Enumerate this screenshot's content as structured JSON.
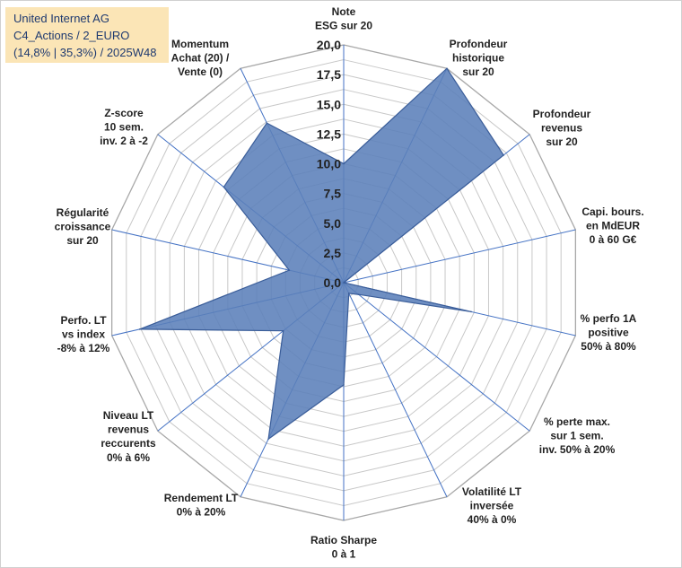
{
  "info": {
    "company": "United Internet AG",
    "portfolio": "C4_Actions / 2_EURO",
    "stats": "(14,8% | 35,3%) / 2025W48"
  },
  "chart_data": {
    "type": "radar",
    "title": "United Internet AG",
    "rmax": 20,
    "ticks": [
      "0,0",
      "2,5",
      "5,0",
      "7,5",
      "10,0",
      "12,5",
      "15,0",
      "17,5",
      "20,0"
    ],
    "axes": [
      [
        "Note",
        "ESG sur 20"
      ],
      [
        "Profondeur",
        "historique",
        "sur 20"
      ],
      [
        "Profondeur",
        "revenus",
        "sur 20"
      ],
      [
        "Capi. bours.",
        "en MdEUR",
        "0 à 60 G€"
      ],
      [
        "% perfo 1A",
        "positive",
        "50% à 80%"
      ],
      [
        "% perte max.",
        "sur 1 sem.",
        "inv. 50% à 20%"
      ],
      [
        "Volatilité LT",
        "inversée",
        "40% à 0%"
      ],
      [
        "Ratio Sharpe",
        "0 à 1"
      ],
      [
        "Rendement LT",
        "0% à 20%"
      ],
      [
        "Niveau LT",
        "revenus",
        "reccurents",
        "0% à 6%"
      ],
      [
        "Perfo. LT",
        "vs index",
        "-8% à 12%"
      ],
      [
        "Régularité",
        "croissance",
        "sur 20"
      ],
      [
        "Z-score",
        "10 sem.",
        "inv. 2 à -2"
      ],
      [
        "Momentum",
        "Achat (20) /",
        "Vente (0)"
      ]
    ],
    "series": [
      {
        "name": "United Internet AG",
        "values": [
          10.0,
          20.0,
          17.2,
          0.0,
          11.0,
          1.6,
          1.0,
          8.6,
          14.6,
          6.5,
          17.6,
          4.7,
          12.9,
          14.9
        ]
      }
    ],
    "colors": {
      "fill": "#5b7fb9",
      "stroke": "#3a5d99",
      "grid": "#c8c8c8",
      "axis": "#4472c4"
    }
  }
}
